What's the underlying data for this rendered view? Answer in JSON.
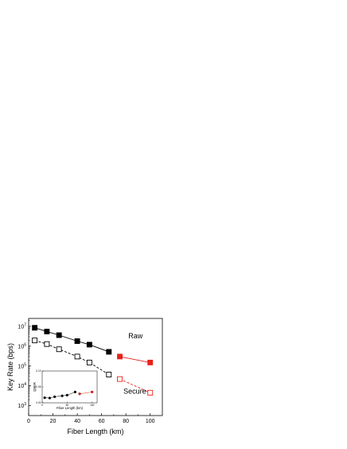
{
  "chart_data": {
    "type": "line",
    "xlabel": "Fiber Length  (km)",
    "ylabel": "Key Rate (bps)",
    "xlim": [
      0,
      110
    ],
    "ylim_log10": [
      2.5,
      7.4
    ],
    "yscale": "log",
    "xticks": [
      0,
      20,
      40,
      60,
      80,
      100
    ],
    "yticks": [
      {
        "value": 1000,
        "base": "10",
        "exp": "3"
      },
      {
        "value": 10000,
        "base": "10",
        "exp": "4"
      },
      {
        "value": 100000,
        "base": "10",
        "exp": "5"
      },
      {
        "value": 1000000,
        "base": "10",
        "exp": "6"
      },
      {
        "value": 10000000,
        "base": "10",
        "exp": "7"
      }
    ],
    "annotations": [
      {
        "text": "Raw",
        "x": 82,
        "y": 2500000
      },
      {
        "text": "Secure",
        "x": 78,
        "y": 4000
      }
    ],
    "series": [
      {
        "style": "raw",
        "color": "#000000",
        "fill": "filled",
        "dash": "solid",
        "x": [
          5,
          15,
          25,
          40,
          50,
          66
        ],
        "y": [
          8500000,
          5500000,
          3600000,
          1800000,
          1200000,
          520000
        ]
      },
      {
        "style": "raw",
        "color": "#e8211a",
        "fill": "filled",
        "dash": "solid",
        "x": [
          75,
          100
        ],
        "y": [
          300000,
          150000
        ]
      },
      {
        "style": "secure",
        "color": "#000000",
        "fill": "open",
        "dash": "dashed",
        "x": [
          5,
          15,
          25,
          40,
          50,
          66
        ],
        "y": [
          1950000,
          1280000,
          700000,
          300000,
          150000,
          37000
        ]
      },
      {
        "style": "secure",
        "color": "#e8211a",
        "fill": "open",
        "dash": "dashed",
        "x": [
          75,
          100
        ],
        "y": [
          22000,
          4500
        ]
      }
    ],
    "inset": {
      "xlabel": "Fiber Length (km)",
      "ylabel": "QBER",
      "xlim": [
        0,
        110
      ],
      "ylim": [
        0.0,
        0.1
      ],
      "xticks": [
        0,
        50,
        100
      ],
      "yticks": [
        0.0,
        0.05,
        0.1
      ],
      "ytick_labels": [
        "0.00",
        "0.05",
        "0.10"
      ],
      "series": [
        {
          "color": "#000000",
          "x": [
            5,
            15,
            25,
            40,
            50,
            66
          ],
          "y": [
            0.016,
            0.015,
            0.019,
            0.022,
            0.024,
            0.034
          ]
        },
        {
          "color": "#e8211a",
          "x": [
            75,
            100
          ],
          "y": [
            0.028,
            0.034
          ]
        }
      ]
    }
  }
}
